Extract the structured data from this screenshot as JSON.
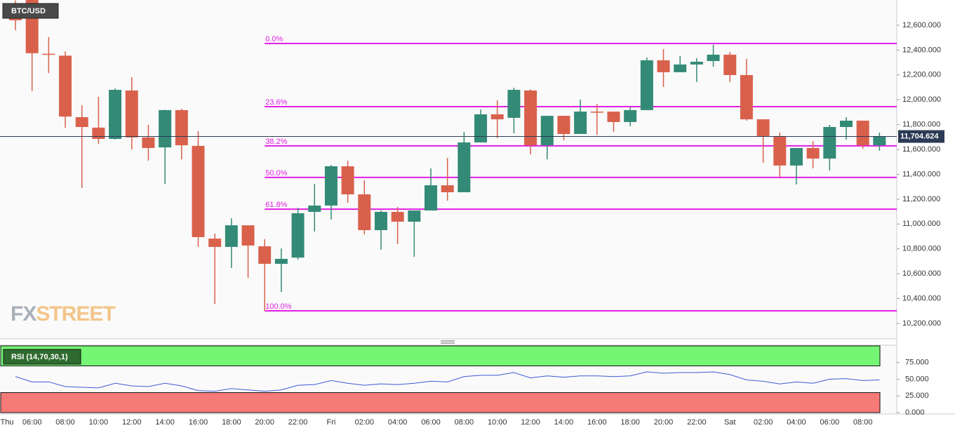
{
  "chart_data": [
    {
      "type": "candlestick",
      "title": "BTC/USD",
      "watermark": [
        "FX",
        "STREET"
      ],
      "categories": [
        "Thu",
        "06:00",
        null,
        "08:00",
        null,
        "10:00",
        null,
        "12:00",
        null,
        "14:00",
        null,
        "16:00",
        null,
        "18:00",
        null,
        "20:00",
        null,
        "22:00",
        null,
        "Fri",
        null,
        "02:00",
        null,
        "04:00",
        null,
        "06:00",
        null,
        "08:00",
        null,
        "10:00",
        null,
        "12:00",
        null,
        "14:00",
        null,
        "16:00",
        null,
        "18:00",
        null,
        "20:00",
        null,
        "22:00",
        null,
        "Sat",
        null,
        "02:00",
        null,
        "04:00",
        null,
        "06:00",
        null,
        "08:00",
        null
      ],
      "open": [
        12700,
        12820,
        12370,
        12355,
        11860,
        11776,
        11685,
        12075,
        11697,
        11617,
        11917,
        11629,
        10883,
        10816,
        10990,
        10821,
        10680,
        10730,
        11098,
        11149,
        11465,
        11239,
        10951,
        11098,
        11019,
        11109,
        11312,
        11256,
        11657,
        11883,
        11855,
        12075,
        11634,
        11871,
        11725,
        11905,
        11905,
        11821,
        11917,
        12318,
        12222,
        12284,
        12312,
        12363,
        12199,
        11843,
        11708,
        11471,
        11612,
        11527,
        11781,
        11832,
        11634
      ],
      "high": [
        12800,
        12840,
        12505,
        12390,
        11956,
        12024,
        12092,
        12182,
        11798,
        11920,
        11928,
        11747,
        10923,
        11047,
        10990,
        10878,
        10804,
        11132,
        11324,
        11476,
        11510,
        11352,
        11109,
        11137,
        11109,
        11448,
        11533,
        11742,
        11922,
        11996,
        12097,
        12085,
        11871,
        11871,
        12001,
        11967,
        11905,
        11939,
        12340,
        12408,
        12352,
        12335,
        12442,
        12385,
        12329,
        11843,
        11736,
        11612,
        11668,
        11798,
        11860,
        11832,
        11736
      ],
      "low": [
        12560,
        12070,
        12215,
        11775,
        11290,
        11646,
        11680,
        11600,
        11510,
        11324,
        11521,
        10816,
        10358,
        10646,
        10567,
        10302,
        10454,
        10714,
        10940,
        11036,
        11171,
        10917,
        10793,
        10838,
        10736,
        11109,
        11188,
        11256,
        11657,
        11691,
        11730,
        11561,
        11521,
        11674,
        11725,
        11719,
        11742,
        11787,
        11917,
        12103,
        12222,
        12143,
        12267,
        12143,
        11832,
        11493,
        11380,
        11318,
        11448,
        11431,
        11679,
        11606,
        11590
      ],
      "close": [
        12640,
        12375,
        12368,
        11865,
        11781,
        11685,
        12080,
        11697,
        11612,
        11917,
        11634,
        10895,
        10816,
        10990,
        10827,
        10680,
        10720,
        11087,
        11149,
        11465,
        11239,
        10951,
        11098,
        11019,
        11109,
        11312,
        11256,
        11657,
        11883,
        11843,
        12080,
        11634,
        11871,
        11725,
        11905,
        11900,
        11821,
        11917,
        12318,
        12222,
        12284,
        12306,
        12363,
        12199,
        11843,
        11708,
        11471,
        11612,
        11527,
        11781,
        11832,
        11634,
        11705
      ],
      "up_color": "#338a77",
      "down_color": "#d9614c",
      "last_price": {
        "value": 11704.624,
        "label": "11,704.624"
      },
      "fib_color": "#e21fe2",
      "fib_levels": [
        {
          "label": "0.0%",
          "value": 12453
        },
        {
          "label": "23.6%",
          "value": 11945
        },
        {
          "label": "38.2%",
          "value": 11629
        },
        {
          "label": "50.0%",
          "value": 11375
        },
        {
          "label": "61.8%",
          "value": 11120
        },
        {
          "label": "100.0%",
          "value": 10302
        }
      ],
      "ylim": [
        10076,
        12803
      ],
      "yticks": [
        {
          "value": 10200,
          "label": "10,200.000"
        },
        {
          "value": 10400,
          "label": "10,400.000"
        },
        {
          "value": 10600,
          "label": "10,600.000"
        },
        {
          "value": 10800,
          "label": "10,800.000"
        },
        {
          "value": 11000,
          "label": "11,000.000"
        },
        {
          "value": 11200,
          "label": "11,200.000"
        },
        {
          "value": 11400,
          "label": "11,400.000"
        },
        {
          "value": 11600,
          "label": "11,600.000"
        },
        {
          "value": 11800,
          "label": "11,800.000"
        },
        {
          "value": 12000,
          "label": "12,000.000"
        },
        {
          "value": 12200,
          "label": "12,200.000"
        },
        {
          "value": 12400,
          "label": "12,400.000"
        },
        {
          "value": 12600,
          "label": "12,600.000"
        }
      ]
    },
    {
      "type": "line",
      "title": "RSI (14,70,30,1)",
      "color": "#3b5bd6",
      "values": [
        54,
        46,
        46,
        39,
        38,
        37,
        44,
        40,
        39,
        44,
        40,
        33,
        32,
        36,
        34,
        32,
        34,
        41,
        42,
        48,
        44,
        41,
        43,
        42,
        44,
        47,
        46,
        54,
        56,
        56,
        60,
        52,
        55,
        53,
        55,
        55,
        54,
        55,
        61,
        59,
        60,
        60,
        61,
        57,
        49,
        47,
        43,
        46,
        44,
        50,
        51,
        48,
        49
      ],
      "overbought": [
        70,
        100
      ],
      "oversold": [
        0,
        30
      ],
      "overbought_color": "#74f574",
      "oversold_color": "#f67a78",
      "ylim": [
        -2,
        101
      ],
      "yticks": [
        {
          "value": 0,
          "label": "0.000"
        },
        {
          "value": 25,
          "label": "25.000"
        },
        {
          "value": 50,
          "label": "50.000"
        },
        {
          "value": 75,
          "label": "75.000"
        }
      ]
    }
  ]
}
